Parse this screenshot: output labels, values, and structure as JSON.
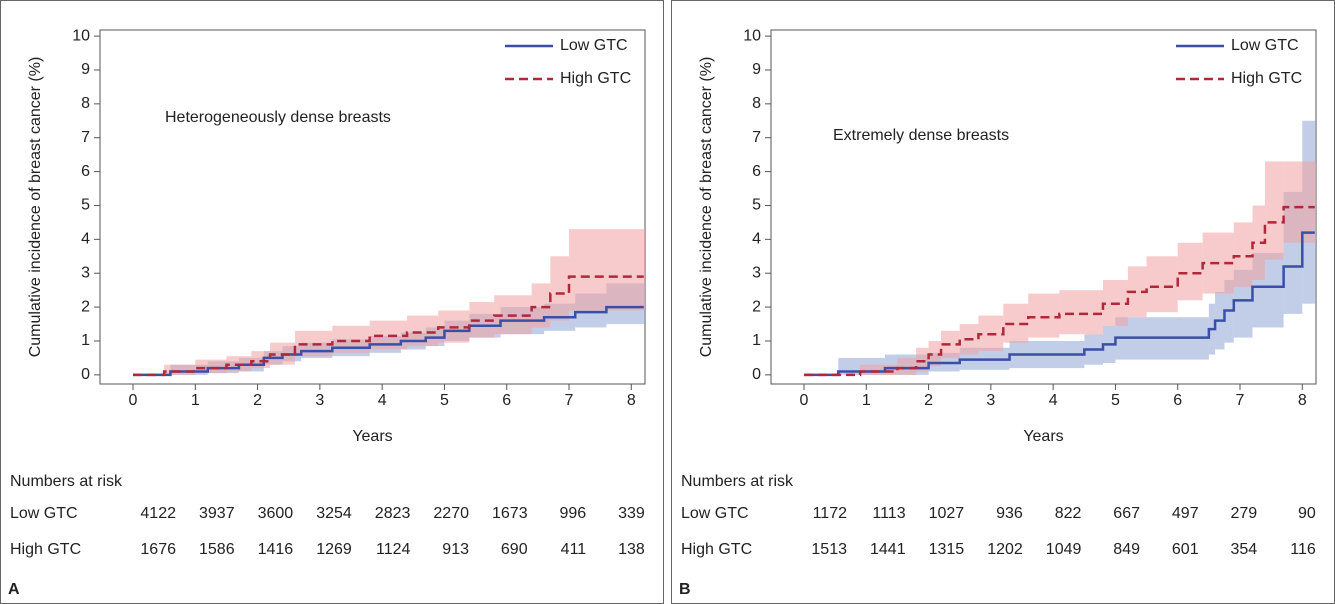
{
  "chart_data": [
    {
      "type": "line",
      "panel_label": "A",
      "annotation": "Heterogeneously dense breasts",
      "xlabel": "Years",
      "ylabel": "Cumulative incidence of breast cancer (%)",
      "xlim": [
        -0.53,
        8.22
      ],
      "ylim": [
        -0.27,
        10.18
      ],
      "xticks": [
        0,
        1,
        2,
        3,
        4,
        5,
        6,
        7,
        8
      ],
      "yticks": [
        0,
        1,
        2,
        3,
        4,
        5,
        6,
        7,
        8,
        9,
        10
      ],
      "legend": "upper right",
      "series": [
        {
          "name": "Low GTC",
          "color": "#3a4fa8",
          "band_color": "#8fa6d4",
          "dashed": false,
          "x": [
            0,
            0.6,
            1.2,
            1.7,
            2.1,
            2.4,
            2.7,
            3.2,
            3.8,
            4.3,
            4.7,
            5.0,
            5.4,
            5.9,
            6.6,
            7.1,
            7.6,
            8.2
          ],
          "values": [
            0,
            0.1,
            0.2,
            0.3,
            0.5,
            0.6,
            0.7,
            0.8,
            0.9,
            1.0,
            1.1,
            1.3,
            1.45,
            1.6,
            1.7,
            1.85,
            2.0,
            2.0
          ],
          "lower": [
            0,
            0,
            0.05,
            0.1,
            0.3,
            0.4,
            0.5,
            0.55,
            0.65,
            0.75,
            0.85,
            1.0,
            1.1,
            1.2,
            1.3,
            1.4,
            1.5,
            1.5
          ],
          "upper": [
            0,
            0.3,
            0.4,
            0.5,
            0.7,
            0.85,
            0.95,
            1.05,
            1.15,
            1.25,
            1.4,
            1.6,
            1.8,
            2.0,
            2.1,
            2.4,
            2.7,
            2.7
          ]
        },
        {
          "name": "High GTC",
          "color": "#b0283a",
          "band_color": "#f0a0a0",
          "dashed": true,
          "x": [
            0,
            0.5,
            1.0,
            1.5,
            1.9,
            2.2,
            2.6,
            3.2,
            3.8,
            4.4,
            4.9,
            5.4,
            5.8,
            6.4,
            6.7,
            7.0,
            8.2
          ],
          "values": [
            0,
            0.1,
            0.2,
            0.3,
            0.4,
            0.6,
            0.9,
            1.0,
            1.15,
            1.25,
            1.4,
            1.6,
            1.75,
            2.0,
            2.4,
            2.9,
            2.9
          ],
          "lower": [
            0,
            0,
            0.05,
            0.1,
            0.2,
            0.3,
            0.55,
            0.65,
            0.75,
            0.85,
            0.95,
            1.1,
            1.2,
            1.4,
            1.6,
            1.9,
            1.9
          ],
          "upper": [
            0,
            0.3,
            0.45,
            0.55,
            0.7,
            0.95,
            1.3,
            1.45,
            1.6,
            1.75,
            1.9,
            2.15,
            2.35,
            2.7,
            3.5,
            4.3,
            4.3
          ]
        }
      ],
      "risk_table": {
        "title": "Numbers at risk",
        "rows": [
          {
            "name": "Low GTC",
            "values": [
              4122,
              3937,
              3600,
              3254,
              2823,
              2270,
              1673,
              996,
              339
            ]
          },
          {
            "name": "High GTC",
            "values": [
              1676,
              1586,
              1416,
              1269,
              1124,
              913,
              690,
              411,
              138
            ]
          }
        ]
      }
    },
    {
      "type": "line",
      "panel_label": "B",
      "annotation": "Extremely dense breasts",
      "xlabel": "Years",
      "ylabel": "Cumulative incidence of breast cancer (%)",
      "xlim": [
        -0.53,
        8.22
      ],
      "ylim": [
        -0.27,
        10.18
      ],
      "xticks": [
        0,
        1,
        2,
        3,
        4,
        5,
        6,
        7,
        8
      ],
      "yticks": [
        0,
        1,
        2,
        3,
        4,
        5,
        6,
        7,
        8,
        9,
        10
      ],
      "legend": "upper right",
      "series": [
        {
          "name": "Low GTC",
          "color": "#3a4fa8",
          "band_color": "#8fa6d4",
          "dashed": false,
          "x": [
            0,
            0.55,
            1.3,
            2.0,
            2.5,
            3.3,
            4.5,
            4.8,
            5.0,
            6.5,
            6.6,
            6.75,
            6.9,
            7.2,
            7.7,
            8.0,
            8.2
          ],
          "values": [
            0,
            0.1,
            0.2,
            0.35,
            0.45,
            0.6,
            0.75,
            0.9,
            1.1,
            1.35,
            1.6,
            1.9,
            2.2,
            2.6,
            3.2,
            4.2,
            4.2
          ],
          "lower": [
            0,
            0,
            0,
            0.1,
            0.15,
            0.2,
            0.3,
            0.35,
            0.45,
            0.6,
            0.75,
            0.95,
            1.1,
            1.4,
            1.8,
            2.1,
            2.1
          ],
          "upper": [
            0,
            0.5,
            0.6,
            0.65,
            0.8,
            1.0,
            1.2,
            1.45,
            1.7,
            2.1,
            2.45,
            2.8,
            3.1,
            3.6,
            5.4,
            7.5,
            7.5
          ]
        },
        {
          "name": "High GTC",
          "color": "#b0283a",
          "band_color": "#f0a0a0",
          "dashed": true,
          "x": [
            0,
            0.9,
            1.5,
            1.8,
            2.0,
            2.2,
            2.5,
            2.8,
            3.2,
            3.6,
            4.1,
            4.8,
            5.2,
            5.5,
            6.0,
            6.4,
            6.9,
            7.2,
            7.4,
            7.7,
            8.2
          ],
          "values": [
            0,
            0.1,
            0.2,
            0.4,
            0.6,
            0.9,
            1.05,
            1.2,
            1.5,
            1.7,
            1.8,
            2.1,
            2.45,
            2.6,
            3.0,
            3.3,
            3.5,
            3.9,
            4.5,
            4.95,
            4.95
          ],
          "lower": [
            0,
            0,
            0,
            0.1,
            0.25,
            0.5,
            0.6,
            0.7,
            0.95,
            1.1,
            1.2,
            1.45,
            1.7,
            1.85,
            2.2,
            2.4,
            2.6,
            2.8,
            3.4,
            3.9,
            3.9
          ],
          "upper": [
            0,
            0.3,
            0.5,
            0.8,
            1.0,
            1.3,
            1.5,
            1.75,
            2.1,
            2.4,
            2.5,
            2.8,
            3.2,
            3.5,
            3.9,
            4.2,
            4.5,
            5.0,
            6.3,
            6.3,
            6.3
          ]
        }
      ],
      "risk_table": {
        "title": "Numbers at risk",
        "rows": [
          {
            "name": "Low GTC",
            "values": [
              1172,
              1113,
              1027,
              936,
              822,
              667,
              497,
              279,
              90
            ]
          },
          {
            "name": "High GTC",
            "values": [
              1513,
              1441,
              1315,
              1202,
              1049,
              849,
              601,
              354,
              116
            ]
          }
        ]
      }
    }
  ]
}
